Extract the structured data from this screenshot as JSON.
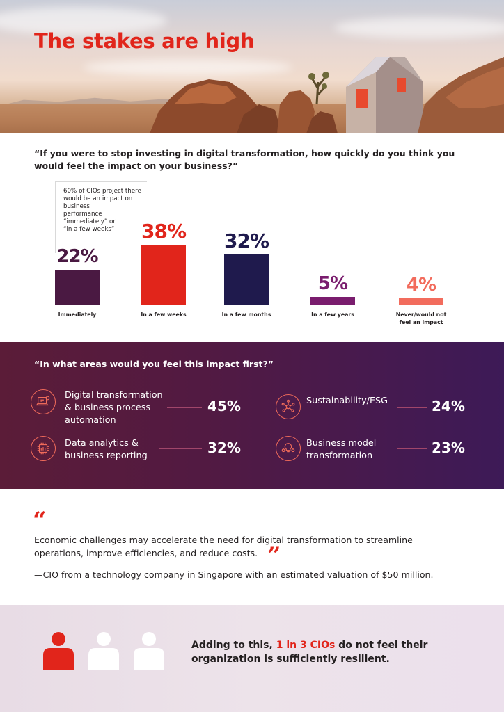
{
  "hero": {
    "title": "The stakes are high"
  },
  "survey": {
    "question": "“If you were to stop investing in digital transformation, how quickly do you think you would feel the impact on your business?”",
    "callout_lines": [
      "60% of CIOs project there",
      "would be an impact on business",
      "performance “immediately” or",
      "“in a few weeks”"
    ]
  },
  "chart_data": {
    "type": "bar",
    "categories": [
      "Immediately",
      "In a few weeks",
      "In a few months",
      "In a few years",
      "Never/would not feel an impact"
    ],
    "category_lines": [
      [
        "Immediately"
      ],
      [
        "In a few weeks"
      ],
      [
        "In a few months"
      ],
      [
        "In a few years"
      ],
      [
        "Never/would not",
        "feel an impact"
      ]
    ],
    "values": [
      22,
      38,
      32,
      5,
      4
    ],
    "value_labels": [
      "22%",
      "38%",
      "32%",
      "5%",
      "4%"
    ],
    "colors": [
      "#4a1942",
      "#e1251b",
      "#1f1a4d",
      "#7a1d6e",
      "#f26c5d"
    ],
    "ylim": [
      0,
      40
    ],
    "grid": false
  },
  "impact": {
    "question": "“In what areas would you feel this impact first?”",
    "items": [
      {
        "icon": "automation-laptop-icon",
        "label_lines": [
          "Digital transformation",
          "& business process",
          "automation"
        ],
        "value": "45%"
      },
      {
        "icon": "network-nodes-icon",
        "label_lines": [
          "Sustainability/ESG"
        ],
        "value": "24%"
      },
      {
        "icon": "data-analytics-chip-icon",
        "label_lines": [
          "Data analytics &",
          "business reporting"
        ],
        "value": "32%"
      },
      {
        "icon": "lightbulb-gears-icon",
        "label_lines": [
          "Business model",
          "transformation"
        ],
        "value": "23%"
      }
    ],
    "accent_color": "#f06b5a"
  },
  "quote": {
    "open_mark": "“",
    "close_mark": "”",
    "lines": [
      "Economic challenges may accelerate the need for digital transformation to streamline",
      "operations, improve efficiencies, and reduce costs."
    ],
    "attribution": "—CIO from a technology company in Singapore with an estimated valuation of $50 million."
  },
  "resilience": {
    "text_before": "Adding to this, ",
    "highlight": "1 in 3 CIOs",
    "text_after": " do not feel their organization is sufficiently resilient.",
    "people_total": 3,
    "people_highlighted": 1,
    "highlight_color": "#e1251b"
  }
}
